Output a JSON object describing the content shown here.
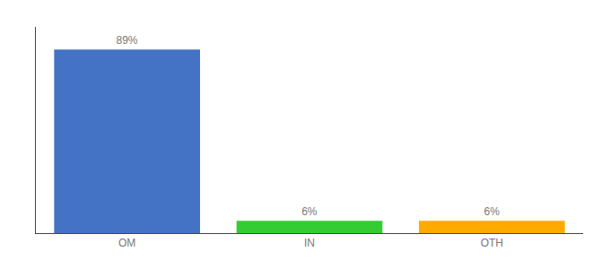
{
  "chart_data": {
    "type": "bar",
    "categories": [
      "OM",
      "IN",
      "OTH"
    ],
    "values": [
      89,
      6,
      6
    ],
    "value_labels": [
      "89%",
      "6%",
      "6%"
    ],
    "data_labels": true,
    "colors": [
      "#4472c4",
      "#33cc33",
      "#ffaa00"
    ],
    "ylim": [
      0,
      100
    ],
    "grid": false,
    "tick_labels": "x"
  }
}
